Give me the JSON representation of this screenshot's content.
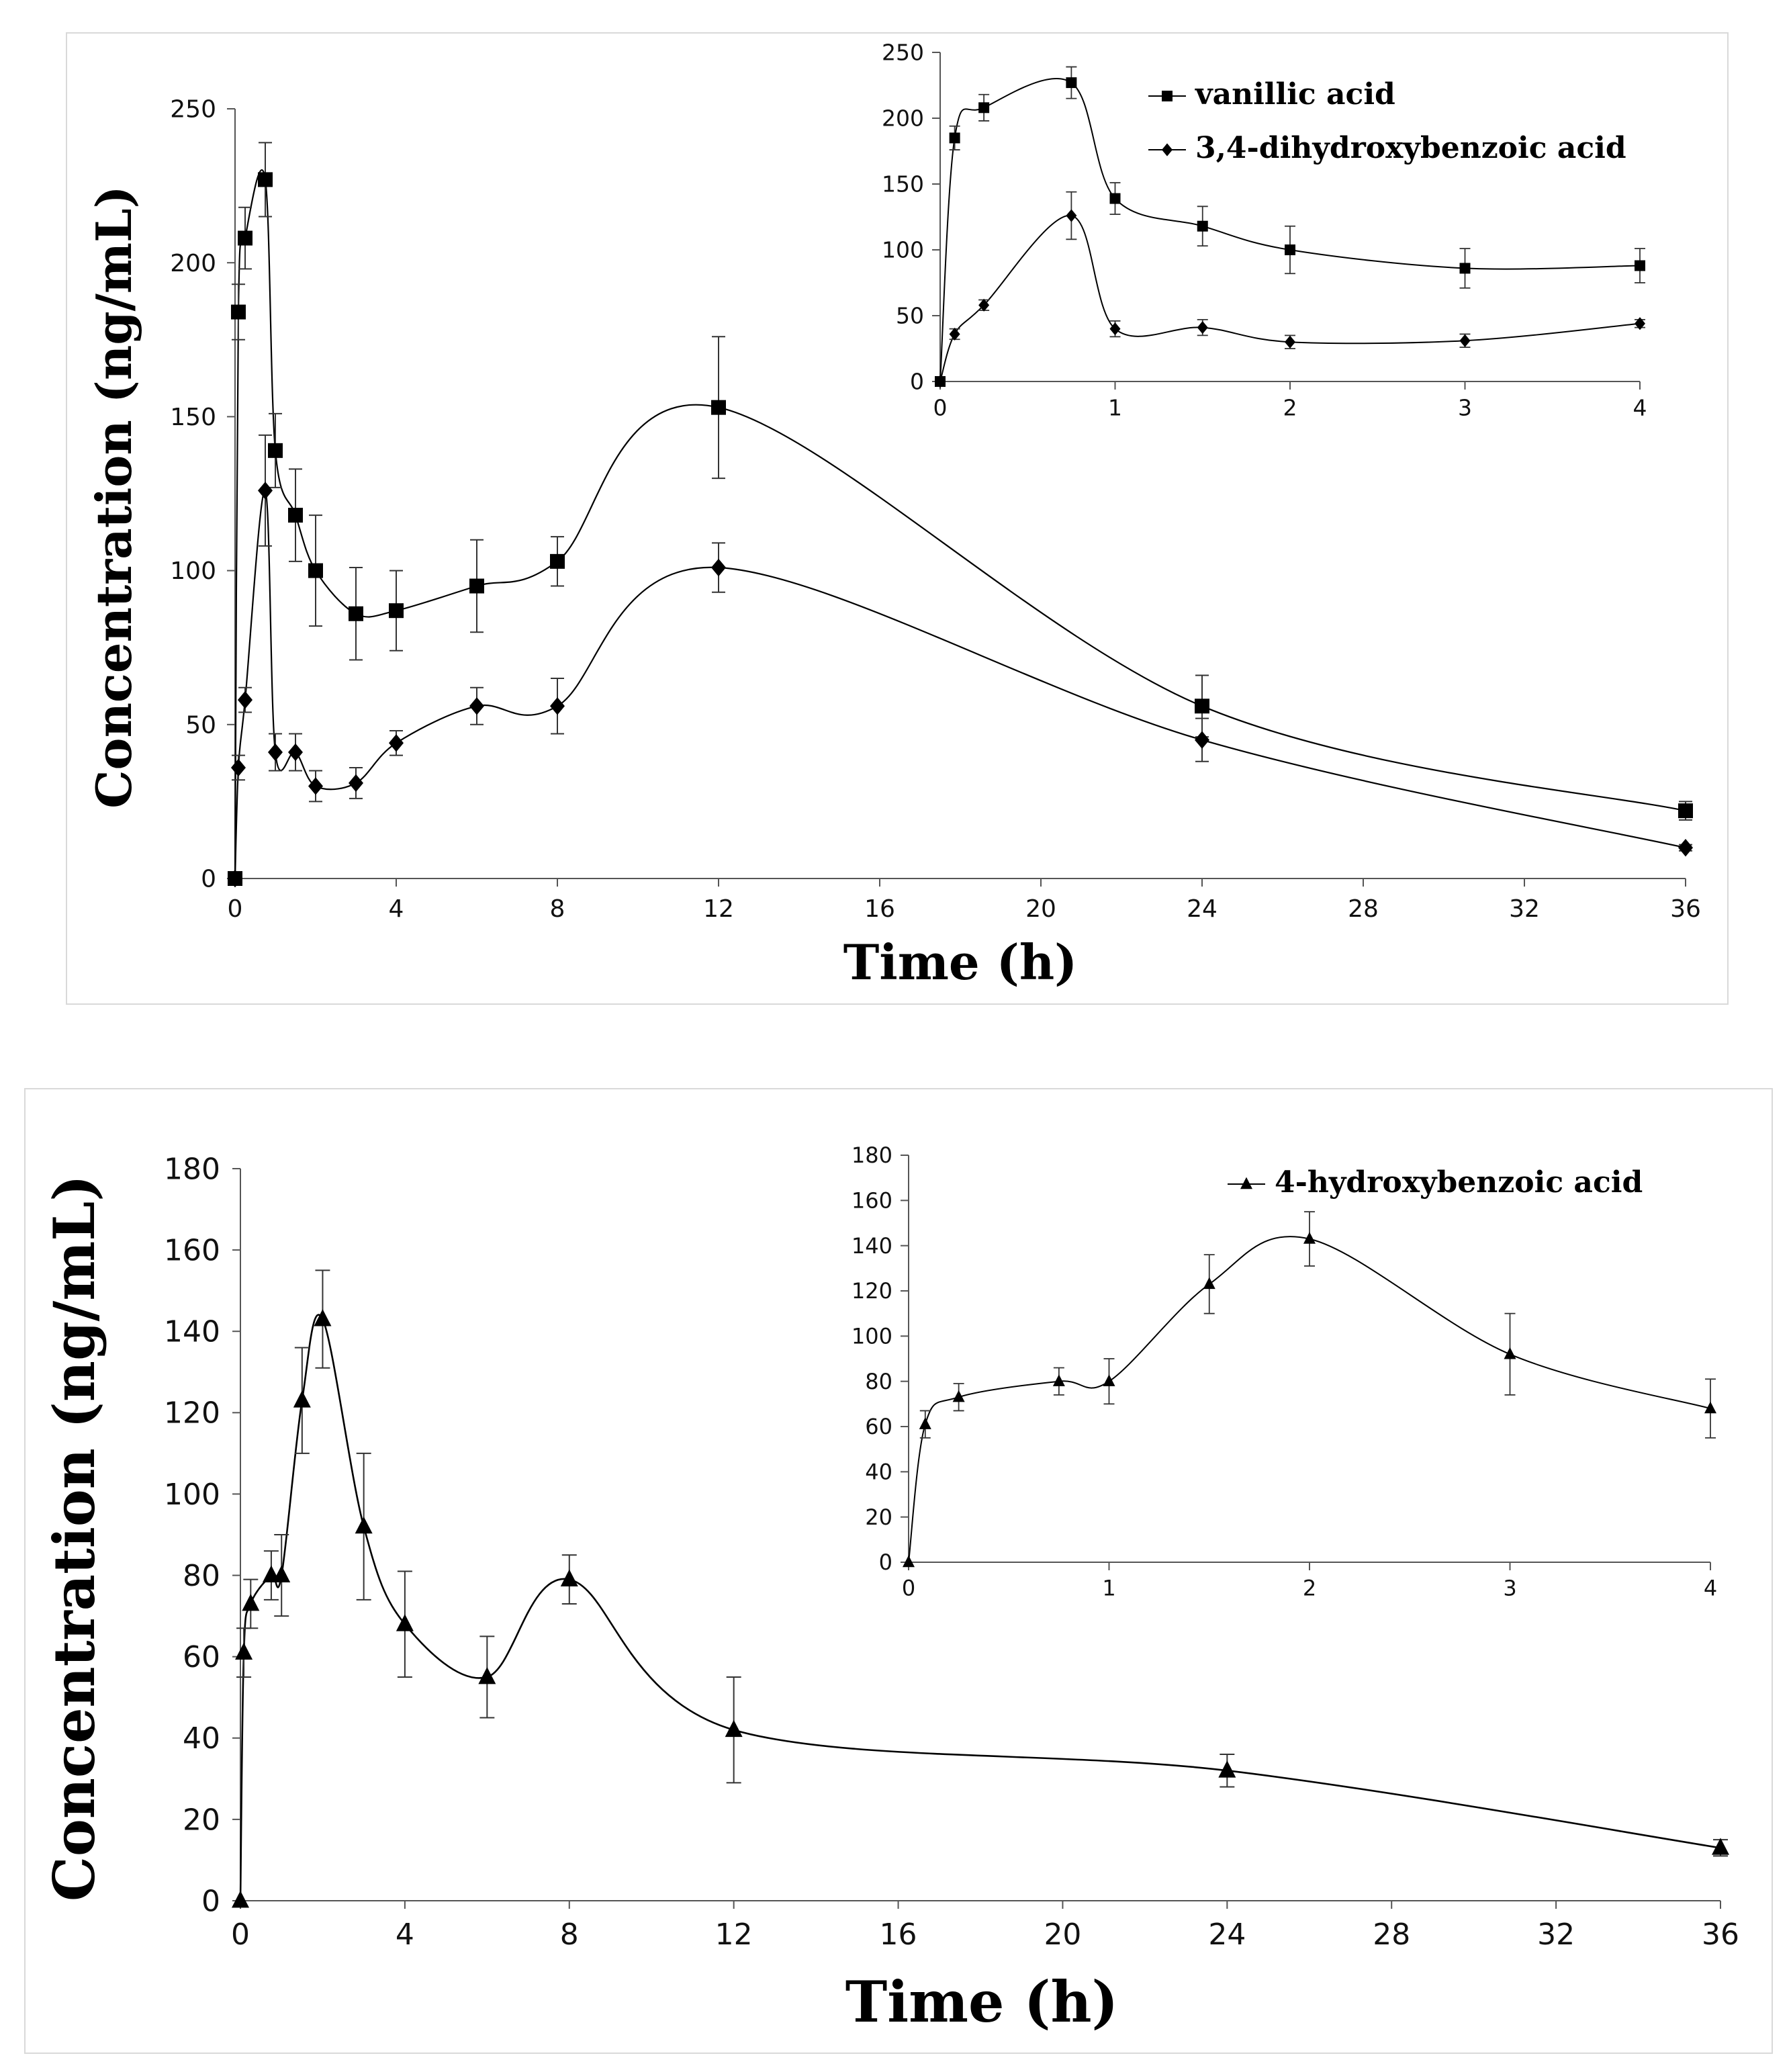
{
  "chart_data": [
    {
      "id": "top-main",
      "type": "line",
      "xlabel": "Time (h)",
      "ylabel": "Concentration (ng/mL)",
      "xlim": [
        0,
        36
      ],
      "ylim": [
        0,
        250
      ],
      "xticks": [
        0,
        4,
        8,
        12,
        16,
        20,
        24,
        28,
        32,
        36
      ],
      "yticks": [
        0,
        50,
        100,
        150,
        200,
        250
      ],
      "series": [
        {
          "name": "vanillic acid",
          "marker": "square",
          "x": [
            0,
            0.083,
            0.25,
            0.75,
            1,
            1.5,
            2,
            3,
            4,
            6,
            8,
            12,
            24,
            36
          ],
          "y": [
            0,
            184,
            208,
            227,
            139,
            118,
            100,
            86,
            87,
            95,
            103,
            153,
            56,
            22
          ],
          "err": [
            0,
            9,
            10,
            12,
            12,
            15,
            18,
            15,
            13,
            15,
            8,
            23,
            10,
            3
          ]
        },
        {
          "name": "3,4-dihydroxybenzoic acid",
          "marker": "diamond",
          "x": [
            0,
            0.083,
            0.25,
            0.75,
            1,
            1.5,
            2,
            3,
            4,
            6,
            8,
            12,
            24,
            36
          ],
          "y": [
            0,
            36,
            58,
            126,
            41,
            41,
            30,
            31,
            44,
            56,
            56,
            101,
            45,
            10
          ],
          "err": [
            0,
            4,
            4,
            18,
            6,
            6,
            5,
            5,
            4,
            6,
            9,
            8,
            7,
            1
          ]
        }
      ]
    },
    {
      "id": "top-inset",
      "type": "line",
      "xlim": [
        0,
        4
      ],
      "ylim": [
        0,
        250
      ],
      "xticks": [
        0,
        1,
        2,
        3,
        4
      ],
      "yticks": [
        0,
        50,
        100,
        150,
        200,
        250
      ],
      "legend": [
        "vanillic acid",
        "3,4-dihydroxybenzoic acid"
      ],
      "series": [
        {
          "name": "vanillic acid",
          "marker": "square",
          "x": [
            0,
            0.083,
            0.25,
            0.75,
            1,
            1.5,
            2,
            3,
            4
          ],
          "y": [
            0,
            185,
            208,
            227,
            139,
            118,
            100,
            86,
            88
          ],
          "err": [
            0,
            9,
            10,
            12,
            12,
            15,
            18,
            15,
            13
          ]
        },
        {
          "name": "3,4-dihydroxybenzoic acid",
          "marker": "diamond",
          "x": [
            0,
            0.083,
            0.25,
            0.75,
            1,
            1.5,
            2,
            3,
            4
          ],
          "y": [
            0,
            36,
            58,
            126,
            40,
            41,
            30,
            31,
            44
          ],
          "err": [
            0,
            4,
            4,
            18,
            6,
            6,
            5,
            5,
            3
          ]
        }
      ]
    },
    {
      "id": "bottom-main",
      "type": "line",
      "xlabel": "Time (h)",
      "ylabel": "Concentration (ng/mL)",
      "xlim": [
        0,
        36
      ],
      "ylim": [
        0,
        180
      ],
      "xticks": [
        0,
        4,
        8,
        12,
        16,
        20,
        24,
        28,
        32,
        36
      ],
      "yticks": [
        0,
        20,
        40,
        60,
        80,
        100,
        120,
        140,
        160,
        180
      ],
      "series": [
        {
          "name": "4-hydroxybenzoic acid",
          "marker": "triangle",
          "x": [
            0,
            0.083,
            0.25,
            0.75,
            1,
            1.5,
            2,
            3,
            4,
            6,
            8,
            12,
            24,
            36
          ],
          "y": [
            0,
            61,
            73,
            80,
            80,
            123,
            143,
            92,
            68,
            55,
            79,
            42,
            32,
            13
          ],
          "err": [
            0,
            6,
            6,
            6,
            10,
            13,
            12,
            18,
            13,
            10,
            6,
            13,
            4,
            2
          ]
        }
      ]
    },
    {
      "id": "bottom-inset",
      "type": "line",
      "xlim": [
        0,
        4
      ],
      "ylim": [
        0,
        180
      ],
      "xticks": [
        0,
        1,
        2,
        3,
        4
      ],
      "yticks": [
        0,
        20,
        40,
        60,
        80,
        100,
        120,
        140,
        160,
        180
      ],
      "legend": [
        "4-hydroxybenzoic acid"
      ],
      "series": [
        {
          "name": "4-hydroxybenzoic acid",
          "marker": "triangle",
          "x": [
            0,
            0.083,
            0.25,
            0.75,
            1,
            1.5,
            2,
            3,
            4
          ],
          "y": [
            0,
            61,
            73,
            80,
            80,
            123,
            143,
            92,
            68
          ],
          "err": [
            0,
            6,
            6,
            6,
            10,
            13,
            12,
            18,
            13
          ]
        }
      ]
    }
  ]
}
